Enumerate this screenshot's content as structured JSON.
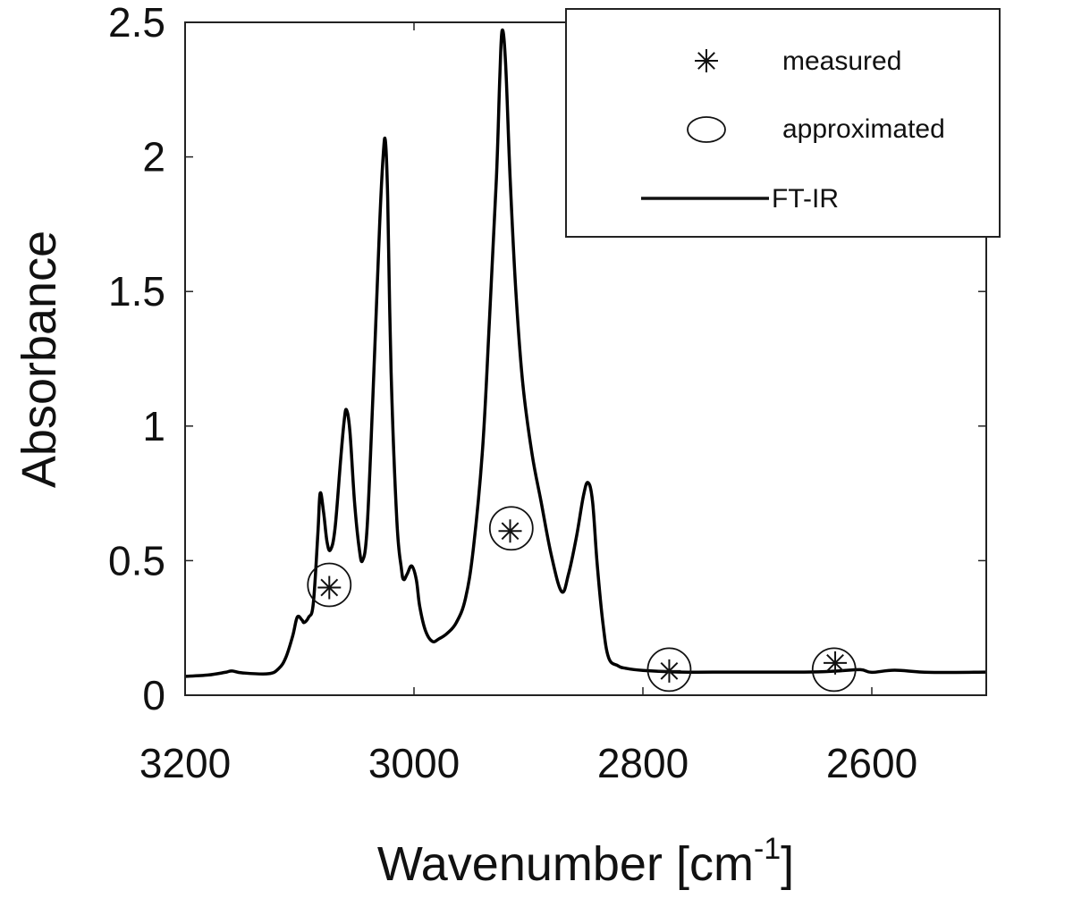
{
  "chart_data": {
    "type": "line",
    "title": "",
    "xlabel": "Wavenumber [cm",
    "xlabel_sup": "-1",
    "xlabel_close": "]",
    "ylabel": "Absorbance",
    "xlim": [
      3200,
      2500
    ],
    "x_reversed": true,
    "ylim": [
      0,
      2.5
    ],
    "x_ticks": [
      3200,
      3000,
      2800,
      2600
    ],
    "x_tick_labels": [
      "3200",
      "3000",
      "2800",
      "2600"
    ],
    "y_ticks": [
      0,
      0.5,
      1,
      1.5,
      2,
      2.5
    ],
    "y_tick_labels": [
      "0",
      "0.5",
      "1",
      "1.5",
      "2",
      "2.5"
    ],
    "grid": false,
    "legend_position": "top-right",
    "legend": [
      {
        "label": "measured",
        "marker": "asterisk"
      },
      {
        "label": "approximated",
        "marker": "circle"
      },
      {
        "label": "FT-IR",
        "marker": "line"
      }
    ],
    "series": [
      {
        "name": "FT-IR",
        "type": "line",
        "color": "#000000",
        "x": [
          3200,
          3180,
          3165,
          3159,
          3150,
          3127,
          3118,
          3112,
          3106,
          3102,
          3098,
          3096,
          3092,
          3088,
          3084,
          3082,
          3079,
          3076,
          3073,
          3069,
          3064,
          3061,
          3059,
          3056,
          3052,
          3048,
          3045,
          3041,
          3036,
          3030,
          3027,
          3025,
          3023,
          3020,
          3015,
          3011,
          3009,
          3006,
          3002,
          2998,
          2995,
          2990,
          2984,
          2978,
          2971,
          2963,
          2955,
          2948,
          2940,
          2934,
          2928,
          2925,
          2923,
          2920,
          2916,
          2911,
          2905,
          2897,
          2889,
          2880,
          2871,
          2865,
          2858,
          2852,
          2848,
          2844,
          2840,
          2835,
          2830,
          2822,
          2815,
          2800,
          2768,
          2720,
          2659,
          2630,
          2610,
          2600,
          2580,
          2550,
          2500
        ],
        "y": [
          0.07,
          0.075,
          0.085,
          0.09,
          0.083,
          0.08,
          0.1,
          0.14,
          0.22,
          0.29,
          0.28,
          0.27,
          0.29,
          0.34,
          0.6,
          0.75,
          0.68,
          0.57,
          0.54,
          0.62,
          0.88,
          1.02,
          1.06,
          0.98,
          0.72,
          0.55,
          0.5,
          0.62,
          1.1,
          1.75,
          2.0,
          2.06,
          1.85,
          1.2,
          0.65,
          0.47,
          0.43,
          0.45,
          0.48,
          0.43,
          0.33,
          0.24,
          0.2,
          0.21,
          0.23,
          0.27,
          0.36,
          0.55,
          0.92,
          1.4,
          1.92,
          2.3,
          2.47,
          2.35,
          1.92,
          1.5,
          1.16,
          0.9,
          0.72,
          0.52,
          0.385,
          0.45,
          0.59,
          0.74,
          0.79,
          0.72,
          0.49,
          0.27,
          0.14,
          0.11,
          0.1,
          0.092,
          0.086,
          0.086,
          0.086,
          0.09,
          0.095,
          0.085,
          0.093,
          0.085,
          0.086
        ]
      },
      {
        "name": "measured",
        "type": "scatter",
        "marker": "asterisk",
        "x": [
          3074,
          2916,
          2777,
          2632
        ],
        "y": [
          0.4,
          0.61,
          0.09,
          0.12
        ]
      },
      {
        "name": "approximated",
        "type": "scatter",
        "marker": "circle",
        "x": [
          3074,
          2915,
          2777,
          2633
        ],
        "y": [
          0.41,
          0.62,
          0.095,
          0.095
        ]
      }
    ]
  }
}
